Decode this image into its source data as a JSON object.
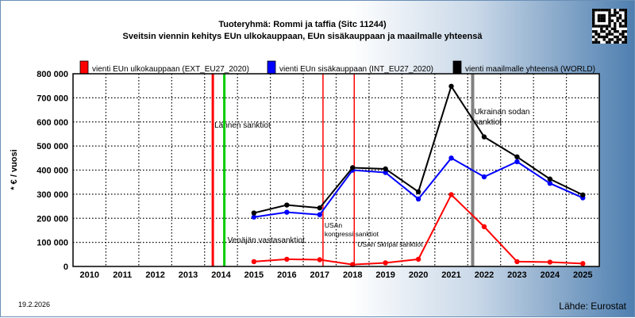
{
  "title_line1": "Tuoteryhmä: Rommi ja taffia (Sitc 11244)",
  "title_line2": "Sveitsin viennin kehitys EUn ulkokauppaan, EUn sisäkauppaan ja maailmalle yhteensä",
  "date": "19.2.2026",
  "source": "Lähde: Eurostat",
  "colors": {
    "ext": "#ff0000",
    "int": "#0000ff",
    "world": "#000000",
    "grid": "#000000"
  },
  "chart_data": {
    "type": "line",
    "title": "Sveitsin viennin kehitys EUn ulkokauppaan, EUn sisäkauppaan ja maailmalle yhteensä",
    "ylabel": "* € / vuosi",
    "xlabel": "",
    "ylim": [
      0,
      800000
    ],
    "y_ticks": [
      "0",
      "100 000",
      "200 000",
      "300 000",
      "400 000",
      "500 000",
      "600 000",
      "700 000",
      "800 000"
    ],
    "categories": [
      "2010",
      "2011",
      "2012",
      "2013",
      "2014",
      "2015",
      "2016",
      "2017",
      "2018",
      "2019",
      "2020",
      "2021",
      "2022",
      "2023",
      "2024",
      "2025"
    ],
    "grid": true,
    "legend_position": "top",
    "series": [
      {
        "name": "vienti EUn ulkokauppaan (EXT_EU27_2020)",
        "color": "#ff0000",
        "values": [
          null,
          null,
          null,
          null,
          null,
          20000,
          30000,
          28000,
          8000,
          15000,
          30000,
          298000,
          165000,
          20000,
          18000,
          12000
        ]
      },
      {
        "name": "vienti EUn sisäkauppaan (INT_EU27_2020)",
        "color": "#0000ff",
        "values": [
          null,
          null,
          null,
          null,
          null,
          205000,
          225000,
          215000,
          400000,
          390000,
          280000,
          450000,
          372000,
          435000,
          345000,
          285000
        ]
      },
      {
        "name": "vienti maailmalle yhteensä (WORLD)",
        "color": "#000000",
        "values": [
          null,
          null,
          null,
          null,
          null,
          222000,
          255000,
          243000,
          410000,
          405000,
          310000,
          748000,
          538000,
          455000,
          363000,
          297000
        ]
      }
    ],
    "events": [
      {
        "x": 2013.75,
        "color": "#ff0000",
        "label": "Lännen sanktiot"
      },
      {
        "x": 2014.1,
        "color": "#00cc00",
        "label": "Venäjän vastasanktiot"
      },
      {
        "x": 2017.1,
        "color": "#ff0000",
        "label": "USAn kongressi sanktiot"
      },
      {
        "x": 2018.05,
        "color": "#ff0000",
        "label": "USAn Skripal sanktiot"
      },
      {
        "x": 2021.65,
        "color": "#808080",
        "label": "Ukrainan sodan sanktiot"
      }
    ]
  }
}
